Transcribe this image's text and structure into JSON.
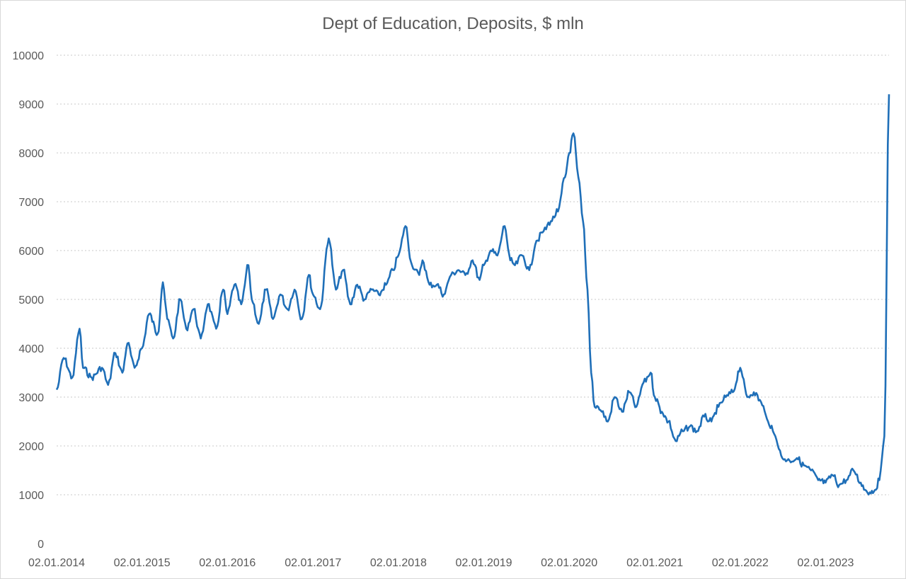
{
  "chart_data": {
    "type": "line",
    "title": "Dept of Education, Deposits, $ mln",
    "xlabel": "",
    "ylabel": "",
    "ylim": [
      0,
      10000
    ],
    "y_ticks": [
      0,
      1000,
      2000,
      3000,
      4000,
      5000,
      6000,
      7000,
      8000,
      9000,
      10000
    ],
    "x_range": [
      "2014-01-02",
      "2023-09-30"
    ],
    "x_tick_labels": [
      "02.01.2014",
      "02.01.2015",
      "02.01.2016",
      "02.01.2017",
      "02.01.2018",
      "02.01.2019",
      "02.01.2020",
      "02.01.2021",
      "02.01.2022",
      "02.01.2023"
    ],
    "x_tick_dates": [
      "2014-01-02",
      "2015-01-02",
      "2016-01-02",
      "2017-01-02",
      "2018-01-02",
      "2019-01-02",
      "2020-01-02",
      "2021-01-02",
      "2022-01-02",
      "2023-01-02"
    ],
    "grid": "horizontal-dotted",
    "legend": "none",
    "series": [
      {
        "color": "#1f6fb8",
        "x": [
          "2014-01-02",
          "2014-02-01",
          "2014-03-10",
          "2014-04-10",
          "2014-04-25",
          "2014-06-01",
          "2014-07-15",
          "2014-08-10",
          "2014-09-10",
          "2014-10-10",
          "2014-11-01",
          "2014-12-01",
          "2015-01-02",
          "2015-02-01",
          "2015-03-10",
          "2015-04-01",
          "2015-04-20",
          "2015-05-15",
          "2015-06-15",
          "2015-07-10",
          "2015-08-10",
          "2015-09-10",
          "2015-10-10",
          "2015-11-15",
          "2015-12-15",
          "2016-01-02",
          "2016-02-01",
          "2016-03-01",
          "2016-04-01",
          "2016-04-15",
          "2016-05-15",
          "2016-06-15",
          "2016-07-15",
          "2016-08-15",
          "2016-09-15",
          "2016-10-15",
          "2016-11-15",
          "2016-12-15",
          "2017-01-02",
          "2017-02-01",
          "2017-03-10",
          "2017-04-10",
          "2017-05-10",
          "2017-06-10",
          "2017-07-10",
          "2017-08-10",
          "2017-09-10",
          "2017-10-10",
          "2017-11-10",
          "2017-12-10",
          "2018-01-02",
          "2018-02-01",
          "2018-03-01",
          "2018-04-01",
          "2018-04-15",
          "2018-05-15",
          "2018-06-15",
          "2018-07-15",
          "2018-08-15",
          "2018-09-15",
          "2018-10-15",
          "2018-11-15",
          "2018-12-15",
          "2019-01-02",
          "2019-02-01",
          "2019-03-01",
          "2019-04-01",
          "2019-04-25",
          "2019-05-15",
          "2019-06-15",
          "2019-07-15",
          "2019-08-15",
          "2019-09-15",
          "2019-10-15",
          "2019-11-15",
          "2019-12-15",
          "2020-01-02",
          "2020-01-20",
          "2020-02-10",
          "2020-03-01",
          "2020-03-20",
          "2020-04-05",
          "2020-04-20",
          "2020-05-05",
          "2020-05-20",
          "2020-06-15",
          "2020-07-15",
          "2020-08-15",
          "2020-09-15",
          "2020-10-15",
          "2020-11-15",
          "2020-12-15",
          "2021-01-02",
          "2021-02-01",
          "2021-03-01",
          "2021-04-01",
          "2021-05-01",
          "2021-06-01",
          "2021-07-01",
          "2021-08-01",
          "2021-09-01",
          "2021-10-01",
          "2021-11-01",
          "2021-12-01",
          "2022-01-02",
          "2022-02-01",
          "2022-03-01",
          "2022-04-01",
          "2022-05-01",
          "2022-06-01",
          "2022-07-01",
          "2022-08-01",
          "2022-09-01",
          "2022-10-01",
          "2022-11-01",
          "2022-12-01",
          "2023-01-02",
          "2023-02-01",
          "2023-03-01",
          "2023-04-01",
          "2023-05-01",
          "2023-06-01",
          "2023-06-20",
          "2023-07-10",
          "2023-08-01",
          "2023-08-20",
          "2023-09-10",
          "2023-09-30"
        ],
        "values": [
          3150,
          3800,
          3400,
          4400,
          3600,
          3400,
          3600,
          3250,
          3900,
          3500,
          4100,
          3600,
          4000,
          4700,
          4300,
          5350,
          4600,
          4200,
          5000,
          4400,
          4800,
          4200,
          4900,
          4400,
          5200,
          4700,
          5300,
          4900,
          5700,
          5000,
          4500,
          5200,
          4600,
          5100,
          4800,
          5200,
          4600,
          5500,
          5100,
          4800,
          6250,
          5200,
          5600,
          4900,
          5300,
          5000,
          5200,
          5100,
          5300,
          5600,
          5900,
          6500,
          5700,
          5500,
          5800,
          5300,
          5300,
          5100,
          5500,
          5600,
          5500,
          5800,
          5400,
          5700,
          6000,
          5900,
          6500,
          5800,
          5700,
          5900,
          5600,
          6200,
          6400,
          6600,
          6800,
          7500,
          8000,
          8400,
          7500,
          6600,
          5200,
          3500,
          2800,
          2800,
          2700,
          2500,
          3000,
          2700,
          3100,
          2800,
          3300,
          3500,
          3000,
          2700,
          2500,
          2100,
          2300,
          2400,
          2300,
          2600,
          2500,
          2800,
          3000,
          3100,
          3600,
          3000,
          3100,
          2900,
          2500,
          2200,
          1750,
          1700,
          1750,
          1600,
          1500,
          1300,
          1250,
          1400,
          1200,
          1300,
          1500,
          1250,
          1100,
          1050,
          1100,
          1300,
          2200,
          9200
        ]
      }
    ]
  }
}
